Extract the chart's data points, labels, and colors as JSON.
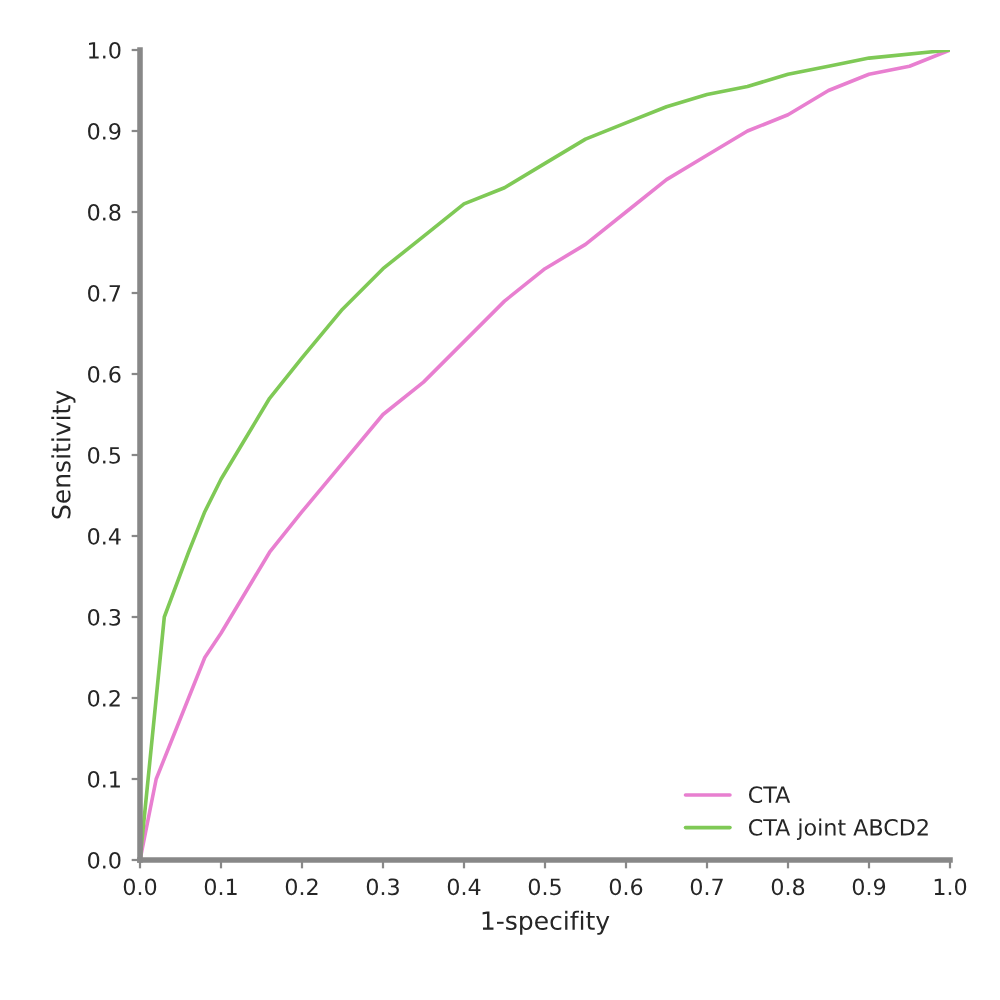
{
  "chart_data": {
    "type": "line",
    "xlabel": "1-specifity",
    "ylabel": "Sensitivity",
    "xlim": [
      0,
      1
    ],
    "ylim": [
      0,
      1
    ],
    "xticks": [
      {
        "value": 0,
        "label": "0.0"
      },
      0.1,
      0.2,
      0.3,
      0.4,
      0.5,
      0.6,
      0.7,
      0.8,
      0.9,
      {
        "value": 1,
        "label": "1.0"
      }
    ],
    "yticks": [
      {
        "value": 0,
        "label": "0.0"
      },
      0.1,
      0.2,
      0.3,
      0.4,
      0.5,
      0.6,
      0.7,
      0.8,
      0.9,
      {
        "value": 1,
        "label": "1.0"
      }
    ],
    "grid": false,
    "legend": "bottom right",
    "marker": "none",
    "line_style": "solid",
    "series": [
      {
        "name": "CTA",
        "color": "#e87fd0",
        "x": [
          0,
          0.01,
          0.02,
          0.04,
          0.06,
          0.08,
          0.1,
          0.13,
          0.16,
          0.2,
          0.25,
          0.3,
          0.35,
          0.4,
          0.45,
          0.5,
          0.55,
          0.6,
          0.65,
          0.7,
          0.75,
          0.8,
          0.85,
          0.9,
          0.95,
          1
        ],
        "values": [
          0,
          0.05,
          0.1,
          0.15,
          0.2,
          0.25,
          0.28,
          0.33,
          0.38,
          0.43,
          0.49,
          0.55,
          0.59,
          0.64,
          0.69,
          0.73,
          0.76,
          0.8,
          0.84,
          0.87,
          0.9,
          0.92,
          0.95,
          0.97,
          0.98,
          1
        ]
      },
      {
        "name": "CTA joint ABCD2",
        "color": "#7fc956",
        "x": [
          0,
          0.01,
          0.02,
          0.03,
          0.06,
          0.08,
          0.1,
          0.13,
          0.16,
          0.2,
          0.25,
          0.3,
          0.35,
          0.4,
          0.45,
          0.5,
          0.55,
          0.6,
          0.65,
          0.7,
          0.75,
          0.8,
          0.85,
          0.9,
          1
        ],
        "values": [
          0,
          0.1,
          0.2,
          0.3,
          0.38,
          0.43,
          0.47,
          0.52,
          0.57,
          0.62,
          0.68,
          0.73,
          0.77,
          0.81,
          0.83,
          0.86,
          0.89,
          0.91,
          0.93,
          0.945,
          0.955,
          0.97,
          0.98,
          0.99,
          1
        ]
      }
    ]
  }
}
